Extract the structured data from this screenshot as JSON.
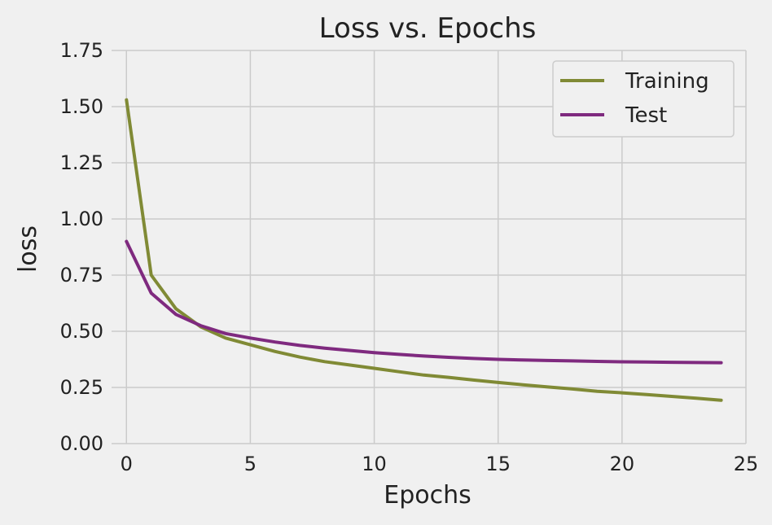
{
  "chart_data": {
    "type": "line",
    "title": "Loss vs. Epochs",
    "xlabel": "Epochs",
    "ylabel": "loss",
    "xlim": [
      -0.6,
      25
    ],
    "ylim": [
      0,
      1.75
    ],
    "xticks": [
      0,
      5,
      10,
      15,
      20,
      25
    ],
    "xtick_labels": [
      "0",
      "5",
      "10",
      "15",
      "20",
      "25"
    ],
    "yticks": [
      0,
      0.25,
      0.5,
      0.75,
      1.0,
      1.25,
      1.5,
      1.75
    ],
    "ytick_labels": [
      "0.00",
      "0.25",
      "0.50",
      "0.75",
      "1.00",
      "1.25",
      "1.50",
      "1.75"
    ],
    "grid": true,
    "legend_position": "top-right",
    "x": [
      0,
      1,
      2,
      3,
      4,
      5,
      6,
      7,
      8,
      9,
      10,
      11,
      12,
      13,
      14,
      15,
      16,
      17,
      18,
      19,
      20,
      21,
      22,
      23,
      24
    ],
    "series": [
      {
        "name": "Training",
        "color": "#808a35",
        "values": [
          1.53,
          0.75,
          0.6,
          0.52,
          0.47,
          0.44,
          0.41,
          0.385,
          0.365,
          0.35,
          0.335,
          0.32,
          0.305,
          0.295,
          0.283,
          0.272,
          0.262,
          0.252,
          0.243,
          0.233,
          0.226,
          0.218,
          0.21,
          0.202,
          0.193
        ]
      },
      {
        "name": "Test",
        "color": "#7f2a7f",
        "values": [
          0.9,
          0.67,
          0.575,
          0.525,
          0.49,
          0.47,
          0.452,
          0.437,
          0.425,
          0.415,
          0.405,
          0.397,
          0.39,
          0.384,
          0.379,
          0.375,
          0.372,
          0.37,
          0.368,
          0.366,
          0.364,
          0.363,
          0.362,
          0.361,
          0.36
        ]
      }
    ]
  }
}
